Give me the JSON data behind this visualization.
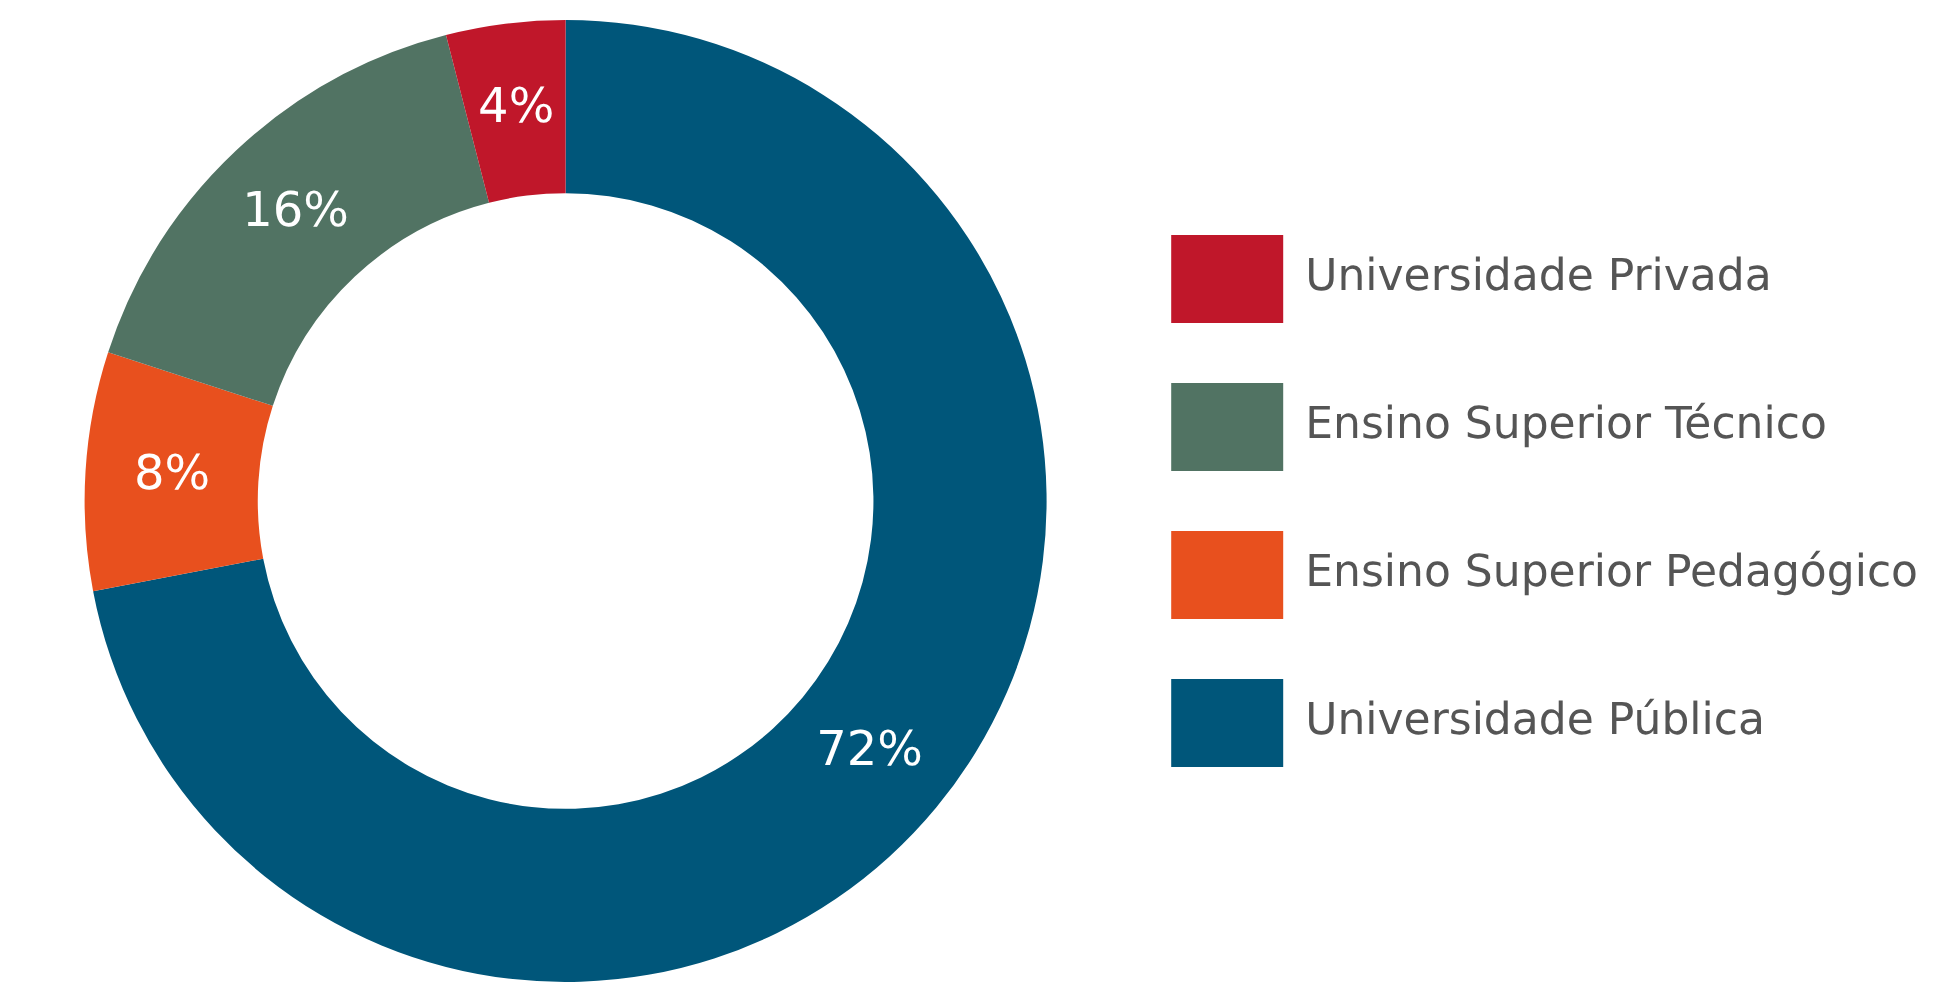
{
  "chart_data": {
    "type": "donut",
    "categories": [
      "Universidade Pública",
      "Ensino Superior Pedagógico",
      "Ensino Superior Técnico",
      "Universidade Privada"
    ],
    "values": [
      72,
      8,
      16,
      4
    ],
    "colors": [
      "#00567a",
      "#e8501e",
      "#517363",
      "#c0172a"
    ],
    "value_labels": [
      "72%",
      "8%",
      "16%",
      "4%"
    ],
    "legend": "right"
  }
}
